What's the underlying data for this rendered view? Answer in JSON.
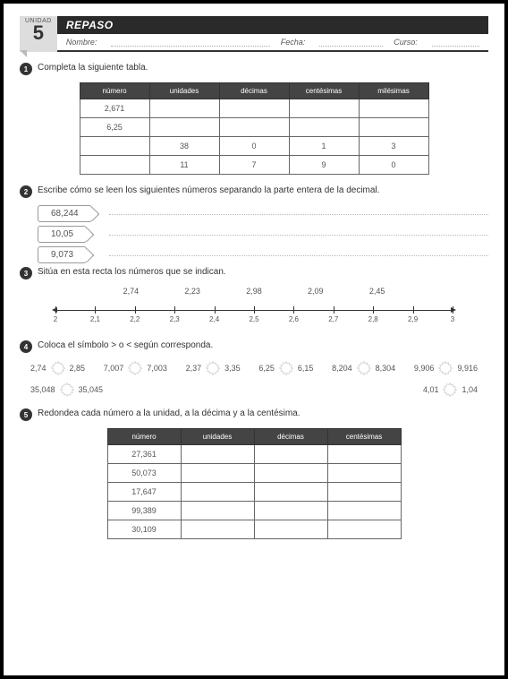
{
  "header": {
    "unit_label": "UNIDAD",
    "unit_num": "5",
    "title": "REPASO",
    "name": "Nombre:",
    "date": "Fecha:",
    "course": "Curso:"
  },
  "q1": {
    "text": "Completa la siguiente tabla.",
    "headers": [
      "número",
      "unidades",
      "décimas",
      "centésimas",
      "milésimas"
    ],
    "rows": [
      [
        "2,671",
        "",
        "",
        "",
        ""
      ],
      [
        "6,25",
        "",
        "",
        "",
        ""
      ],
      [
        "",
        "38",
        "0",
        "1",
        "3"
      ],
      [
        "",
        "11",
        "7",
        "9",
        "0"
      ]
    ]
  },
  "q2": {
    "text": "Escribe cómo se leen los siguientes números separando la parte entera de la decimal.",
    "tags": [
      "68,244",
      "10,05",
      "9,073"
    ]
  },
  "q3": {
    "text": "Sitúa en esta recta los números que se indican.",
    "values": [
      "2,74",
      "2,23",
      "2,98",
      "2,09",
      "2,45"
    ],
    "ticks": [
      "2",
      "2,1",
      "2,2",
      "2,3",
      "2,4",
      "2,5",
      "2,6",
      "2,7",
      "2,8",
      "2,9",
      "3"
    ]
  },
  "q4": {
    "text": "Coloca el símbolo > o < según corresponda.",
    "pairs": [
      [
        "2,74",
        "2,85"
      ],
      [
        "7,007",
        "7,003"
      ],
      [
        "2,37",
        "3,35"
      ],
      [
        "6,25",
        "6,15"
      ],
      [
        "8,204",
        "8,304"
      ],
      [
        "9,906",
        "9,916"
      ],
      [
        "35,048",
        "35,045"
      ],
      [
        "4,01",
        "1,04"
      ]
    ]
  },
  "q5": {
    "text": "Redondea cada número a la unidad, a la décima y a la centésima.",
    "headers": [
      "número",
      "unidades",
      "décimas",
      "centésimas"
    ],
    "rows": [
      [
        "27,361",
        "",
        "",
        ""
      ],
      [
        "50,073",
        "",
        "",
        ""
      ],
      [
        "17,647",
        "",
        "",
        ""
      ],
      [
        "99,389",
        "",
        "",
        ""
      ],
      [
        "30,109",
        "",
        "",
        ""
      ]
    ]
  },
  "colors": {
    "header_bg": "#2a2a2a",
    "th_bg": "#444",
    "border": "#666",
    "text": "#555"
  }
}
